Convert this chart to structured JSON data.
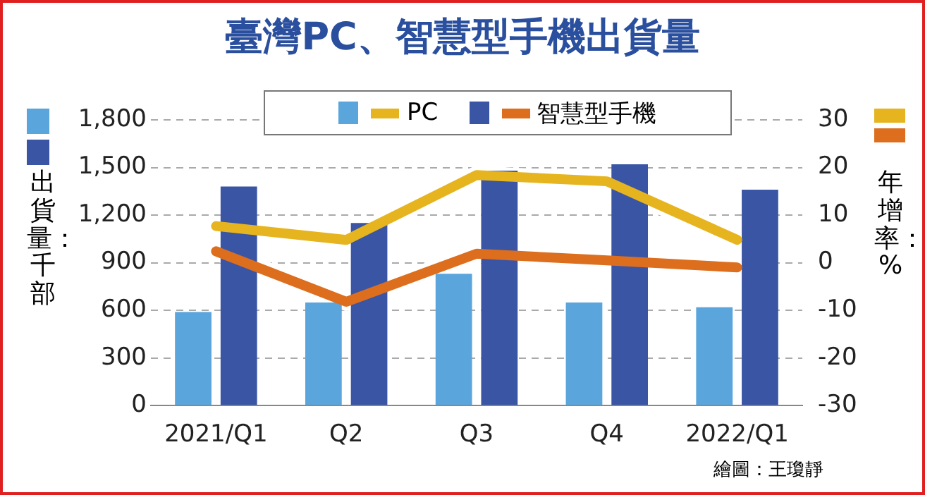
{
  "chart_data": {
    "type": "bar",
    "title": "臺灣PC、智慧型手機出貨量",
    "ylabel": "出貨量：千部",
    "y2label": "年增率：%",
    "categories": [
      "2021/Q1",
      "Q2",
      "Q3",
      "Q4",
      "2022/Q1"
    ],
    "series": [
      {
        "color": "#5aa5dc",
        "values": [
          590,
          650,
          830,
          650,
          620
        ]
      },
      {
        "color": "#3a55a4",
        "values": [
          1380,
          1150,
          1480,
          1520,
          1360
        ]
      },
      {
        "name": "PC",
        "type": "line",
        "axis": "y2",
        "color": "#e6b41e",
        "values": [
          7.7,
          4.8,
          18.4,
          17.1,
          4.8
        ]
      },
      {
        "name": "智慧型手機",
        "type": "line",
        "axis": "y2",
        "color": "#dc6e1e",
        "values": [
          2.4,
          -8.2,
          1.9,
          0.5,
          -1
        ]
      }
    ],
    "ylim": [
      0,
      1800
    ],
    "yticks": [
      0,
      {
        "value": 300,
        "label": "300"
      },
      {
        "value": 600,
        "label": "600"
      },
      {
        "value": 900,
        "label": "900"
      },
      {
        "value": 1200,
        "label": "1,200"
      },
      {
        "value": 1500,
        "label": "1,500"
      },
      {
        "value": 1800,
        "label": "1,800"
      }
    ],
    "y2lim": [
      -30,
      30
    ],
    "y2ticks": [
      -30,
      -20,
      -10,
      0,
      10,
      20,
      30
    ],
    "grid": "y",
    "legend": "top",
    "marker": "none",
    "line_style": "solid",
    "annotations": [
      "繪圖：王瓊靜"
    ]
  }
}
